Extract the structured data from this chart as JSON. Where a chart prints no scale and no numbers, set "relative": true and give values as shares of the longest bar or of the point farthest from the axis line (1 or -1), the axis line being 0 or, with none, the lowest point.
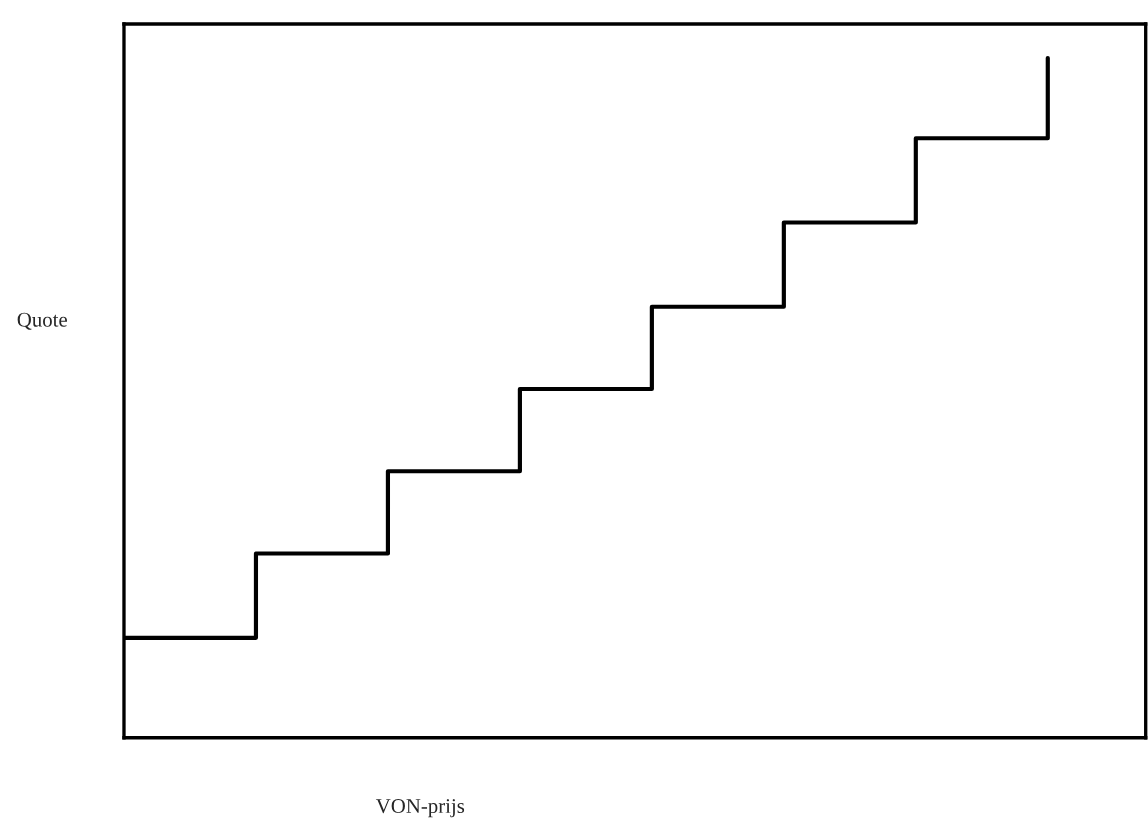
{
  "chart_data": {
    "type": "step",
    "xlabel": "VON-prijs",
    "ylabel": "Quote",
    "relative": true,
    "categories": [
      null,
      null,
      null,
      null,
      null,
      null,
      null,
      null
    ],
    "series": [
      {
        "color": "#000000",
        "values": [
          0.147,
          0.271,
          0.392,
          0.513,
          0.634,
          0.758,
          0.882,
          1
        ]
      }
    ]
  }
}
